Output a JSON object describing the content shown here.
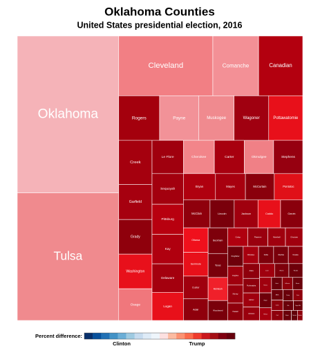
{
  "chart_data": {
    "type": "treemap",
    "title": "Oklahoma Counties",
    "subtitle": "United States presidential election, 2016",
    "categories": [
      "Oklahoma",
      "Tulsa",
      "Cleveland",
      "Comanche",
      "Canadian",
      "Rogers",
      "Payne",
      "Muskogee",
      "Wagoner",
      "Pottawatomie",
      "Creek",
      "Garfield",
      "Grady",
      "Washington",
      "Osage",
      "Le Flore",
      "Cherokee",
      "Carter",
      "Okmulgee",
      "Stephens",
      "Sequoyah",
      "Pittsburg",
      "Kay",
      "Delaware",
      "Logan",
      "Bryan",
      "Mayes",
      "McCurtain",
      "Pontotoc",
      "McClain",
      "Lincoln",
      "Jackson",
      "Caddo",
      "Garvin",
      "Ottawa",
      "Seminole",
      "Custer",
      "Adair",
      "Beckham",
      "Texas",
      "McIntosh",
      "Woodward",
      "Craig",
      "Pawnee",
      "Marshall",
      "Choctaw",
      "Kingfisher",
      "Hughes",
      "Murray",
      "Haskell",
      "Okfuskee",
      "Noble",
      "Washita",
      "Nowata",
      "Atoka",
      "Pushmataha",
      "Latimer",
      "Johnston",
      "Love",
      "Blaine",
      "Woods",
      "Kiowa",
      "Major",
      "Tillman",
      "Grant",
      "Jefferson",
      "Beaver",
      "Alfalfa",
      "Cotton",
      "Coal",
      "Dewey",
      "Greer",
      "Ellis",
      "Roger Mills",
      "Harper",
      "Cimarron",
      "Harmon"
    ],
    "values": [
      283000,
      230000,
      100000,
      48600,
      46900,
      32400,
      31200,
      27900,
      27500,
      27000,
      26100,
      20800,
      20500,
      20500,
      18800,
      18500,
      18300,
      17700,
      17300,
      17200,
      17100,
      16800,
      16400,
      15900,
      15700,
      15000,
      14000,
      13500,
      13300,
      13200,
      12000,
      11800,
      11200,
      11000,
      10800,
      10400,
      10000,
      9500,
      8900,
      8300,
      8000,
      6900,
      6700,
      6600,
      5800,
      5700,
      5500,
      5200,
      5000,
      4800,
      4700,
      4600,
      4500,
      4400,
      4300,
      4200,
      4100,
      3900,
      3700,
      3500,
      3400,
      3300,
      3200,
      2700,
      2300,
      2250,
      2200,
      2150,
      2100,
      2050,
      2000,
      1900,
      1800,
      1600,
      1500,
      1100,
      950
    ],
    "colors": [
      "#f5b3b8",
      "#f08a8e",
      "#f27f84",
      "#f39096",
      "#b3000f",
      "#a4000d",
      "#f29298",
      "#f08a8f",
      "#a00010",
      "#e8101a",
      "#a5000e",
      "#a6000f",
      "#8f000c",
      "#e8101b",
      "#f0777c",
      "#a0000e",
      "#f2858a",
      "#a8000f",
      "#f08086",
      "#960010",
      "#a3000e",
      "#b8000f",
      "#b0000f",
      "#a4000e",
      "#e8101a",
      "#b0000f",
      "#a8000f",
      "#8a000c",
      "#e01018",
      "#8f000c",
      "#7a000b",
      "#a0000e",
      "#e8101a",
      "#8a000c",
      "#f0101c",
      "#e8101a",
      "#a0000e",
      "#8f000c",
      "#7e000b",
      "#7a000b",
      "#f0202a",
      "#7a000b",
      "#b0000f",
      "#9a000e",
      "#a0000e",
      "#a0000e",
      "#6e000a",
      "#a0000e",
      "#9a000e",
      "#8f000c",
      "#a8000f",
      "#7e000b",
      "#7a000b",
      "#8a000c",
      "#8f000c",
      "#8f000c",
      "#a0000e",
      "#9a000e",
      "#a0000e",
      "#7e000b",
      "#6e000a",
      "#a0000e",
      "#6e000a",
      "#a8000f",
      "#6a000a",
      "#8f000c",
      "#6a000a",
      "#6e000a",
      "#8f000c",
      "#8f000c",
      "#6a000a",
      "#8f000c",
      "#6a000a",
      "#6a000a",
      "#6a000a",
      "#620009",
      "#8f000c"
    ],
    "legend": {
      "title": "Percent difference:",
      "left_label": "Clinton",
      "right_label": "Trump",
      "colors": [
        "#08306b",
        "#08519c",
        "#2171b5",
        "#4292c6",
        "#6baed6",
        "#9ecae1",
        "#c6dbef",
        "#deebf7",
        "#eef5fb",
        "#fde0e0",
        "#fcbba1",
        "#fc9272",
        "#fb6a4a",
        "#ef3b2c",
        "#cb181d",
        "#a50f15",
        "#800010",
        "#67000d"
      ]
    }
  }
}
